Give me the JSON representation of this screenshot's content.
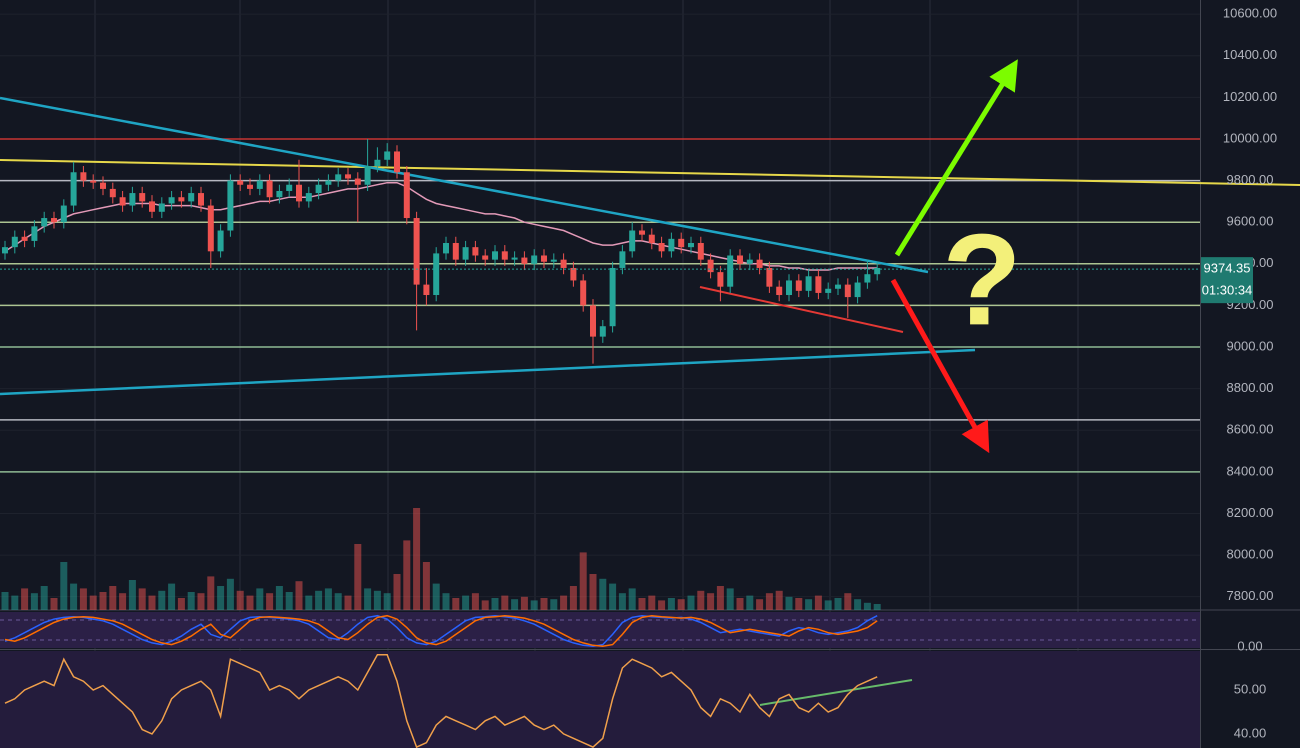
{
  "chart_data": {
    "type": "candlestick",
    "open": [
      9450,
      9480,
      9530,
      9510,
      9580,
      9620,
      9600,
      9680,
      9840,
      9800,
      9790,
      9760,
      9720,
      9680,
      9740,
      9700,
      9650,
      9690,
      9720,
      9700,
      9740,
      9680,
      9460,
      9560,
      9800,
      9780,
      9760,
      9800,
      9720,
      9750,
      9780,
      9700,
      9740,
      9780,
      9800,
      9830,
      9810,
      9780,
      9870,
      9900,
      9940,
      9840,
      9620,
      9300,
      9250,
      9450,
      9500,
      9420,
      9480,
      9440,
      9420,
      9460,
      9420,
      9430,
      9400,
      9440,
      9410,
      9420,
      9380,
      9320,
      9200,
      9050,
      9100,
      9380,
      9460,
      9560,
      9540,
      9500,
      9460,
      9520,
      9480,
      9500,
      9420,
      9360,
      9290,
      9440,
      9400,
      9420,
      9380,
      9290,
      9250,
      9320,
      9270,
      9340,
      9260,
      9280,
      9300,
      9240,
      9310,
      9350
    ],
    "high": [
      9510,
      9560,
      9560,
      9610,
      9650,
      9650,
      9710,
      9890,
      9870,
      9830,
      9820,
      9790,
      9750,
      9770,
      9770,
      9730,
      9720,
      9750,
      9750,
      9770,
      9770,
      9710,
      9590,
      9830,
      9830,
      9810,
      9830,
      9830,
      9780,
      9810,
      9900,
      9770,
      9810,
      9830,
      9860,
      9860,
      9840,
      10000,
      9960,
      9980,
      9970,
      9870,
      9650,
      9380,
      9480,
      9530,
      9530,
      9510,
      9510,
      9470,
      9490,
      9490,
      9460,
      9460,
      9470,
      9470,
      9450,
      9450,
      9410,
      9350,
      9230,
      9130,
      9410,
      9490,
      9600,
      9590,
      9570,
      9530,
      9550,
      9550,
      9530,
      9530,
      9450,
      9390,
      9470,
      9470,
      9450,
      9450,
      9410,
      9320,
      9350,
      9350,
      9370,
      9370,
      9310,
      9330,
      9330,
      9340,
      9420,
      9410
    ],
    "low": [
      9420,
      9450,
      9480,
      9480,
      9550,
      9570,
      9570,
      9650,
      9770,
      9760,
      9730,
      9690,
      9650,
      9650,
      9670,
      9620,
      9620,
      9660,
      9670,
      9670,
      9650,
      9380,
      9430,
      9530,
      9750,
      9730,
      9730,
      9690,
      9690,
      9720,
      9670,
      9670,
      9710,
      9750,
      9770,
      9780,
      9600,
      9750,
      9840,
      9870,
      9810,
      9590,
      9080,
      9200,
      9220,
      9420,
      9390,
      9390,
      9410,
      9390,
      9390,
      9390,
      9390,
      9370,
      9370,
      9380,
      9380,
      9350,
      9290,
      9170,
      8920,
      9020,
      9070,
      9350,
      9430,
      9510,
      9470,
      9430,
      9430,
      9450,
      9450,
      9390,
      9330,
      9220,
      9260,
      9370,
      9370,
      9350,
      9260,
      9220,
      9220,
      9240,
      9240,
      9230,
      9230,
      9250,
      9140,
      9210,
      9280,
      9320
    ],
    "close": [
      9480,
      9530,
      9510,
      9580,
      9620,
      9600,
      9680,
      9840,
      9800,
      9790,
      9760,
      9720,
      9680,
      9740,
      9700,
      9650,
      9690,
      9720,
      9700,
      9740,
      9680,
      9460,
      9560,
      9800,
      9780,
      9760,
      9800,
      9720,
      9750,
      9780,
      9700,
      9740,
      9780,
      9800,
      9830,
      9810,
      9780,
      9870,
      9900,
      9940,
      9840,
      9620,
      9300,
      9250,
      9450,
      9500,
      9420,
      9480,
      9440,
      9420,
      9460,
      9420,
      9430,
      9400,
      9440,
      9410,
      9420,
      9380,
      9320,
      9200,
      9050,
      9100,
      9380,
      9460,
      9560,
      9540,
      9500,
      9460,
      9520,
      9480,
      9500,
      9420,
      9360,
      9290,
      9440,
      9400,
      9420,
      9380,
      9290,
      9250,
      9320,
      9270,
      9340,
      9260,
      9280,
      9300,
      9240,
      9310,
      9350,
      9380
    ],
    "volume": [
      15,
      12,
      18,
      14,
      20,
      10,
      40,
      22,
      18,
      12,
      15,
      20,
      14,
      25,
      18,
      12,
      16,
      22,
      10,
      15,
      14,
      28,
      20,
      26,
      16,
      12,
      18,
      14,
      20,
      15,
      24,
      12,
      16,
      18,
      14,
      12,
      55,
      18,
      16,
      14,
      30,
      58,
      85,
      40,
      22,
      14,
      10,
      12,
      14,
      8,
      10,
      12,
      9,
      11,
      8,
      10,
      9,
      12,
      20,
      48,
      30,
      26,
      22,
      14,
      18,
      10,
      12,
      8,
      10,
      9,
      12,
      16,
      14,
      20,
      18,
      10,
      12,
      9,
      14,
      16,
      11,
      10,
      9,
      12,
      8,
      10,
      14,
      9,
      6,
      5
    ],
    "volume_ylim": [
      0,
      100
    ],
    "up_color": "#26a69a",
    "down_color": "#ef5350",
    "ma": {
      "color": "#e39ab8",
      "values": [
        9460,
        9490,
        9520,
        9550,
        9580,
        9600,
        9620,
        9640,
        9650,
        9660,
        9670,
        9680,
        9690,
        9690,
        9690,
        9690,
        9680,
        9680,
        9680,
        9680,
        9670,
        9660,
        9660,
        9670,
        9680,
        9690,
        9700,
        9700,
        9710,
        9720,
        9720,
        9720,
        9730,
        9740,
        9750,
        9760,
        9760,
        9770,
        9780,
        9790,
        9790,
        9770,
        9740,
        9710,
        9690,
        9680,
        9670,
        9660,
        9650,
        9640,
        9640,
        9630,
        9620,
        9600,
        9590,
        9580,
        9570,
        9560,
        9540,
        9520,
        9500,
        9490,
        9490,
        9500,
        9510,
        9510,
        9500,
        9490,
        9480,
        9470,
        9460,
        9450,
        9440,
        9430,
        9420,
        9410,
        9400,
        9400,
        9390,
        9390,
        9380,
        9380,
        9370,
        9370,
        9370,
        9380,
        9380,
        9380,
        9380,
        9380
      ]
    },
    "ylim": [
      7736,
      10668
    ],
    "yticks": [
      {
        "value": 10600,
        "label": "10600.00"
      },
      {
        "value": 10400,
        "label": "10400.00"
      },
      {
        "value": 10200,
        "label": "10200.00"
      },
      {
        "value": 10000,
        "label": "10000.00"
      },
      {
        "value": 9800,
        "label": "9800.00"
      },
      {
        "value": 9600,
        "label": "9600.00"
      },
      {
        "value": 9400,
        "label": "9400.00"
      },
      {
        "value": 9200,
        "label": "9200.00"
      },
      {
        "value": 9000,
        "label": "9000.00"
      },
      {
        "value": 8800,
        "label": "8800.00"
      },
      {
        "value": 8600,
        "label": "8600.00"
      },
      {
        "value": 8400,
        "label": "8400.00"
      },
      {
        "value": 8200,
        "label": "8200.00"
      },
      {
        "value": 8000,
        "label": "8000.00"
      },
      {
        "value": 7800,
        "label": "7800.00"
      }
    ],
    "levels": [
      {
        "value": 10000,
        "color": "#e53935"
      },
      {
        "value": 9800,
        "color": "#d1d4dc"
      },
      {
        "value": 9600,
        "color": "#c5e1a5"
      },
      {
        "value": 9400,
        "color": "#c5e1a5"
      },
      {
        "value": 9200,
        "color": "#c5e1a5"
      },
      {
        "value": 9000,
        "color": "#a5d6a7"
      },
      {
        "value": 8650,
        "color": "#d1d4dc"
      },
      {
        "value": 8400,
        "color": "#a5d6a7"
      }
    ],
    "last_price": 9374.35,
    "countdown": "01:30:34",
    "annotation": "?",
    "stoch": {
      "ylim": [
        0,
        100
      ],
      "yticks": [
        {
          "value": 0,
          "label": "0.00"
        }
      ],
      "k": {
        "color": "#2962ff",
        "values": [
          20,
          30,
          45,
          60,
          75,
          85,
          90,
          92,
          90,
          85,
          80,
          70,
          55,
          40,
          25,
          15,
          10,
          20,
          35,
          55,
          70,
          40,
          30,
          55,
          80,
          90,
          92,
          90,
          88,
          85,
          80,
          70,
          50,
          30,
          25,
          45,
          70,
          90,
          95,
          85,
          60,
          30,
          15,
          10,
          20,
          40,
          60,
          80,
          90,
          92,
          95,
          92,
          88,
          80,
          70,
          55,
          40,
          25,
          15,
          8,
          5,
          10,
          40,
          75,
          90,
          95,
          92,
          90,
          88,
          90,
          85,
          75,
          60,
          45,
          50,
          55,
          50,
          45,
          40,
          35,
          50,
          60,
          55,
          45,
          40,
          45,
          50,
          60,
          80,
          95
        ]
      },
      "d": {
        "color": "#ff6d00",
        "values": [
          25,
          20,
          30,
          45,
          60,
          75,
          85,
          90,
          92,
          90,
          85,
          80,
          70,
          55,
          40,
          25,
          15,
          10,
          20,
          35,
          55,
          70,
          40,
          30,
          55,
          80,
          90,
          92,
          90,
          88,
          85,
          80,
          70,
          50,
          30,
          25,
          45,
          70,
          90,
          95,
          85,
          60,
          30,
          15,
          10,
          20,
          40,
          60,
          80,
          90,
          92,
          95,
          92,
          88,
          80,
          70,
          55,
          40,
          25,
          15,
          8,
          5,
          10,
          40,
          75,
          90,
          95,
          92,
          90,
          88,
          90,
          85,
          75,
          60,
          45,
          50,
          55,
          50,
          45,
          40,
          35,
          50,
          60,
          55,
          45,
          40,
          45,
          50,
          60,
          80
        ]
      }
    },
    "rsi": {
      "ylim": [
        36.8,
        59.1
      ],
      "yticks": [
        {
          "value": 50,
          "label": "50.00"
        },
        {
          "value": 40,
          "label": "40.00"
        }
      ],
      "color": "#f0a04b",
      "values": [
        47,
        48,
        50,
        51,
        52,
        51,
        57,
        53,
        52,
        50,
        51,
        49,
        47,
        45,
        41,
        40,
        43,
        48,
        50,
        51,
        52,
        50,
        44,
        57,
        56,
        55,
        54,
        50,
        51,
        50,
        48,
        50,
        51,
        52,
        53,
        52,
        50,
        54,
        58,
        58,
        52,
        43,
        37,
        38,
        42,
        44,
        43,
        42,
        41,
        43,
        44,
        42,
        43,
        44,
        42,
        41,
        42,
        40,
        39,
        38,
        37,
        39,
        48,
        55,
        57,
        56,
        55,
        53,
        54,
        52,
        50,
        46,
        44,
        48,
        47,
        45,
        49,
        46,
        44,
        48,
        49,
        46,
        45,
        47,
        45,
        46,
        49,
        51,
        52,
        53
      ]
    }
  }
}
